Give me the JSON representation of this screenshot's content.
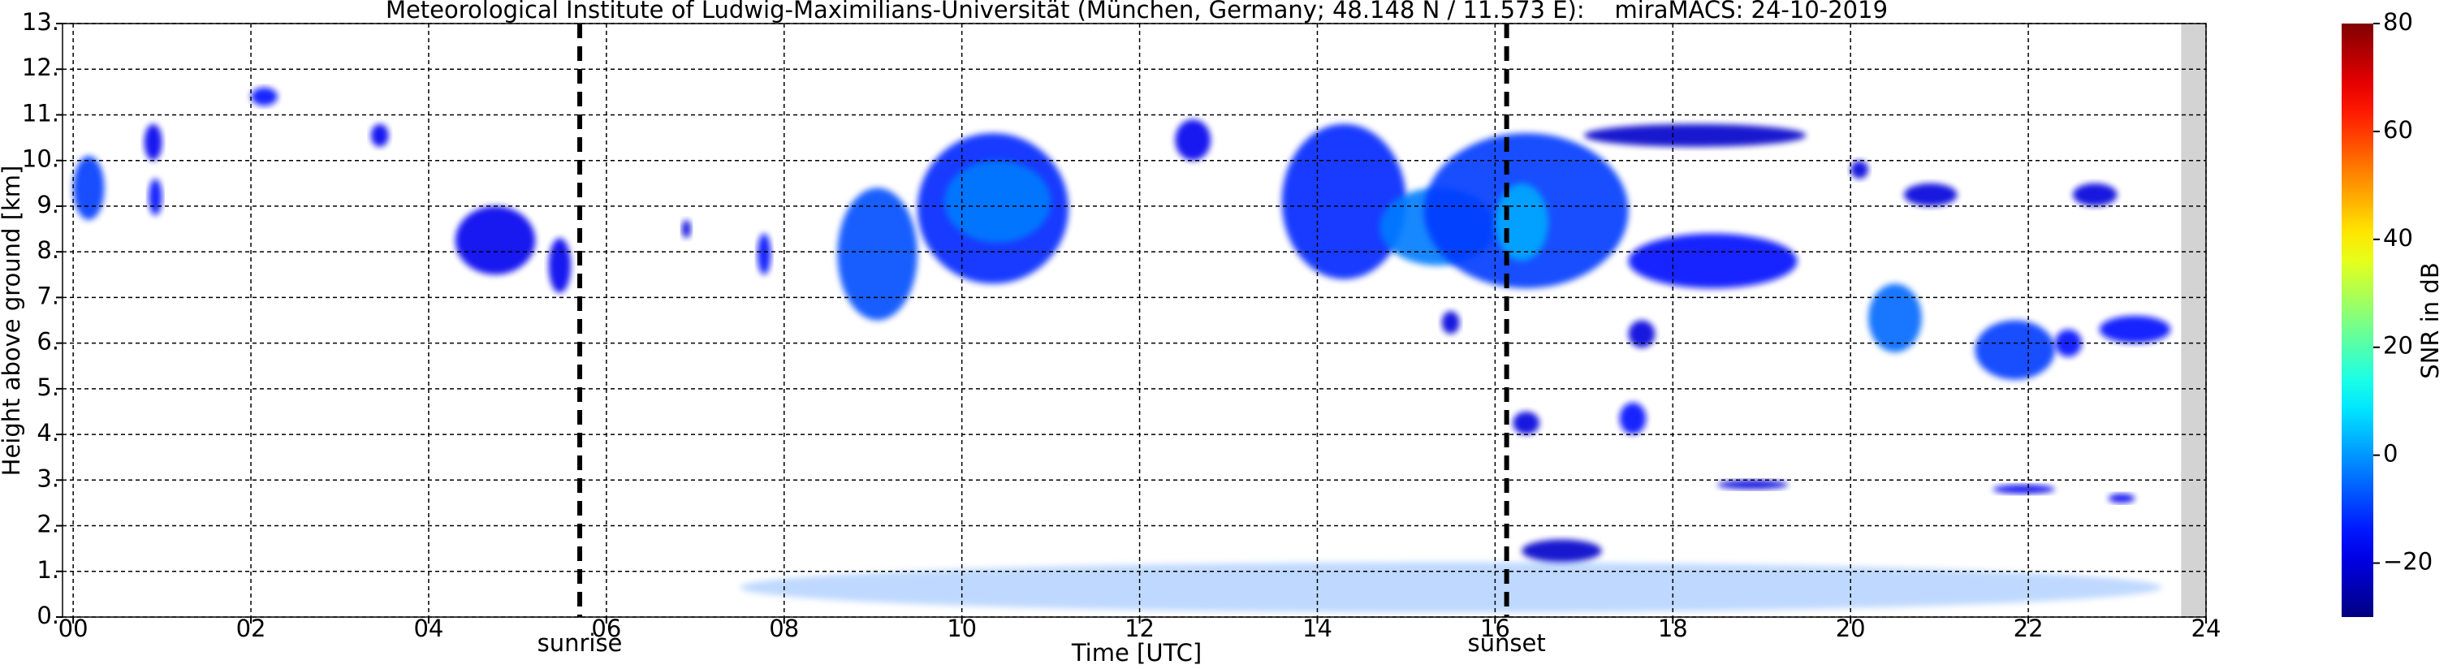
{
  "chart_data": {
    "type": "time-height",
    "title": "Meteorological Institute of Ludwig-Maximilians-Universität (München, Germany; 48.148 N / 11.573 E):    miraMACS: 24-10-2019",
    "x_label": "Time [UTC]",
    "y_label": "Height above ground [km]",
    "colorbar_label": "SNR in dB",
    "colormap": "jet",
    "grid": true,
    "xlim": [
      -0.12,
      24
    ],
    "ylim": [
      0,
      13
    ],
    "clim": [
      -30,
      80
    ],
    "xticks": [
      {
        "value": 0,
        "label": "00"
      },
      {
        "value": 2,
        "label": "02"
      },
      {
        "value": 4,
        "label": "04"
      },
      {
        "value": 6,
        "label": "06"
      },
      {
        "value": 8,
        "label": "08"
      },
      {
        "value": 10,
        "label": "10"
      },
      {
        "value": 12,
        "label": "12"
      },
      14,
      16,
      18,
      20,
      22,
      24
    ],
    "yticks": [
      {
        "value": 0,
        "label": "0."
      },
      {
        "value": 1,
        "label": "1."
      },
      {
        "value": 2,
        "label": "2."
      },
      {
        "value": 3,
        "label": "3."
      },
      {
        "value": 4,
        "label": "4."
      },
      {
        "value": 5,
        "label": "5."
      },
      {
        "value": 6,
        "label": "6."
      },
      {
        "value": 7,
        "label": "7."
      },
      {
        "value": 8,
        "label": "8."
      },
      {
        "value": 9,
        "label": "9."
      },
      {
        "value": 10,
        "label": "10."
      },
      {
        "value": 11,
        "label": "11."
      },
      {
        "value": 12,
        "label": "12."
      },
      {
        "value": 13,
        "label": "13."
      }
    ],
    "cticks": [
      {
        "value": -20,
        "label": "−20"
      },
      0,
      20,
      40,
      60,
      80
    ],
    "events": [
      {
        "x": 5.7,
        "label": "sunrise"
      },
      {
        "x": 16.13,
        "label": "sunset"
      }
    ],
    "missing_data": [
      23.72,
      24
    ],
    "cells": [
      {
        "x0": 0,
        "x1": 0.35,
        "y0": 8.7,
        "y1": 10.1,
        "snr": -10
      },
      {
        "x0": 0.8,
        "x1": 1.0,
        "y0": 10.0,
        "y1": 10.8,
        "snr": -18
      },
      {
        "x0": 0.85,
        "x1": 1.0,
        "y0": 8.8,
        "y1": 9.6,
        "snr": -15
      },
      {
        "x0": 2.0,
        "x1": 2.3,
        "y0": 11.2,
        "y1": 11.6,
        "snr": -15
      },
      {
        "x0": 3.35,
        "x1": 3.55,
        "y0": 10.3,
        "y1": 10.8,
        "snr": -18
      },
      {
        "x0": 4.3,
        "x1": 5.2,
        "y0": 7.5,
        "y1": 9.0,
        "snr": -18
      },
      {
        "x0": 5.35,
        "x1": 5.6,
        "y0": 7.1,
        "y1": 8.3,
        "snr": -18
      },
      {
        "x0": 6.85,
        "x1": 6.95,
        "y0": 8.3,
        "y1": 8.7,
        "snr": -20
      },
      {
        "x0": 7.7,
        "x1": 7.85,
        "y0": 7.5,
        "y1": 8.4,
        "snr": -15
      },
      {
        "x0": 8.6,
        "x1": 9.5,
        "y0": 6.5,
        "y1": 9.4,
        "snr": -8
      },
      {
        "x0": 9.5,
        "x1": 11.2,
        "y0": 7.3,
        "y1": 10.6,
        "snr": -12
      },
      {
        "x0": 9.8,
        "x1": 11.0,
        "y0": 8.2,
        "y1": 10.0,
        "snr": -3
      },
      {
        "x0": 12.4,
        "x1": 12.8,
        "y0": 10.0,
        "y1": 10.9,
        "snr": -18
      },
      {
        "x0": 13.6,
        "x1": 15.0,
        "y0": 7.4,
        "y1": 10.8,
        "snr": -12
      },
      {
        "x0": 14.7,
        "x1": 16.0,
        "y0": 7.7,
        "y1": 9.4,
        "snr": -3
      },
      {
        "x0": 15.2,
        "x1": 17.5,
        "y0": 7.2,
        "y1": 10.6,
        "snr": -10
      },
      {
        "x0": 16.0,
        "x1": 16.6,
        "y0": 7.8,
        "y1": 9.5,
        "snr": 2
      },
      {
        "x0": 17.5,
        "x1": 19.4,
        "y0": 7.2,
        "y1": 8.4,
        "snr": -15
      },
      {
        "x0": 17.0,
        "x1": 19.5,
        "y0": 10.3,
        "y1": 10.8,
        "snr": -22
      },
      {
        "x0": 20.0,
        "x1": 20.2,
        "y0": 9.6,
        "y1": 10.0,
        "snr": -20
      },
      {
        "x0": 20.6,
        "x1": 21.2,
        "y0": 9.0,
        "y1": 9.5,
        "snr": -20
      },
      {
        "x0": 20.2,
        "x1": 20.8,
        "y0": 5.8,
        "y1": 7.3,
        "snr": -5
      },
      {
        "x0": 21.4,
        "x1": 22.3,
        "y0": 5.2,
        "y1": 6.5,
        "snr": -10
      },
      {
        "x0": 22.3,
        "x1": 22.6,
        "y0": 5.7,
        "y1": 6.3,
        "snr": -15
      },
      {
        "x0": 22.8,
        "x1": 23.6,
        "y0": 6.0,
        "y1": 6.6,
        "snr": -15
      },
      {
        "x0": 22.5,
        "x1": 23.0,
        "y0": 9.0,
        "y1": 9.5,
        "snr": -20
      },
      {
        "x0": 17.4,
        "x1": 17.7,
        "y0": 4.0,
        "y1": 4.7,
        "snr": -15
      },
      {
        "x0": 16.3,
        "x1": 17.2,
        "y0": 1.2,
        "y1": 1.7,
        "snr": -22
      },
      {
        "x0": 18.5,
        "x1": 19.3,
        "y0": 2.8,
        "y1": 3.0,
        "snr": -20
      },
      {
        "x0": 21.6,
        "x1": 22.3,
        "y0": 2.7,
        "y1": 2.9,
        "snr": -18
      },
      {
        "x0": 22.9,
        "x1": 23.2,
        "y0": 2.5,
        "y1": 2.7,
        "snr": -18
      },
      {
        "x0": 15.4,
        "x1": 15.6,
        "y0": 6.2,
        "y1": 6.7,
        "snr": -20
      },
      {
        "x0": 17.5,
        "x1": 17.8,
        "y0": 5.9,
        "y1": 6.5,
        "snr": -20
      },
      {
        "x0": 16.2,
        "x1": 16.5,
        "y0": 4.0,
        "y1": 4.5,
        "snr": -20
      },
      {
        "x0": 7.5,
        "x1": 23.5,
        "y0": 0.1,
        "y1": 1.2,
        "snr": -5
      }
    ]
  }
}
